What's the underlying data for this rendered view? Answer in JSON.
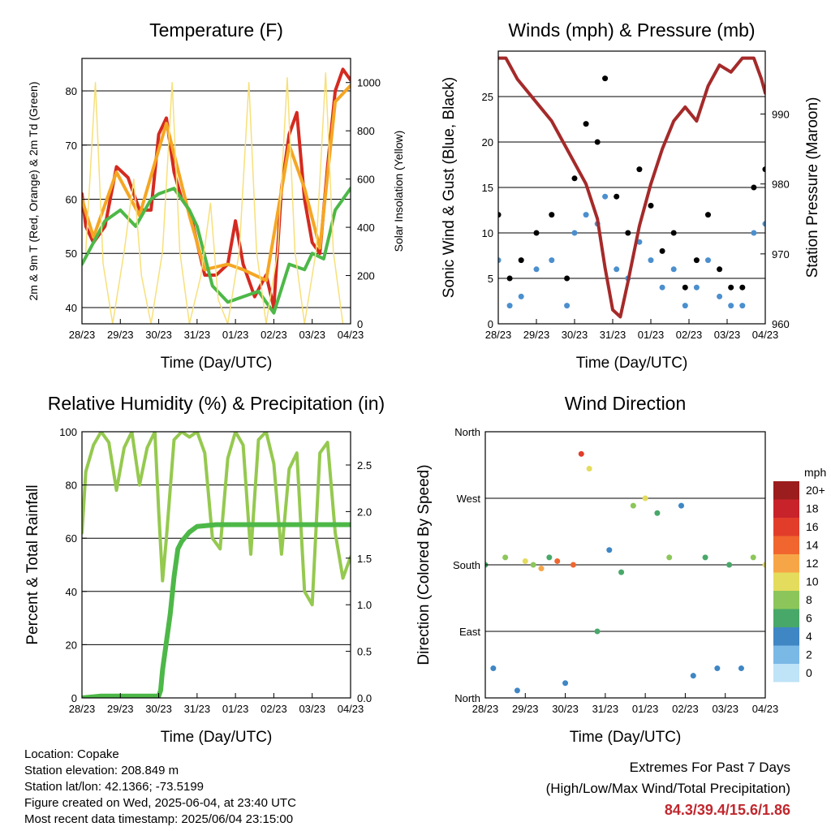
{
  "chart_data": [
    {
      "type": "line",
      "title": "Temperature (F)",
      "xlabel": "Time (Day/UTC)",
      "ylabel": "2m & 9m T (Red, Orange) & 2m Td (Green)",
      "ylabel_right": "Solar Insolation (Yellow)",
      "x_ticks": [
        "28/23",
        "29/23",
        "30/23",
        "31/23",
        "01/23",
        "02/23",
        "03/23",
        "04/23"
      ],
      "y_ticks": [
        40,
        50,
        60,
        70,
        80
      ],
      "y_right_ticks": [
        0,
        200,
        400,
        600,
        800,
        1000
      ],
      "ylim": [
        37,
        86
      ],
      "y_right_lim": [
        0,
        1100
      ],
      "grid": true,
      "series": [
        {
          "name": "2m T",
          "color": "#d42a20",
          "x": [
            0,
            0.1,
            0.3,
            0.6,
            0.9,
            1.2,
            1.5,
            1.8,
            2.0,
            2.2,
            2.4,
            2.6,
            2.8,
            3.0,
            3.2,
            3.5,
            3.8,
            4.0,
            4.2,
            4.5,
            4.8,
            5.0,
            5.2,
            5.4,
            5.6,
            5.8,
            6.0,
            6.2,
            6.4,
            6.6,
            6.8,
            7.0
          ],
          "y": [
            61,
            55,
            52,
            55,
            66,
            64,
            58,
            58,
            72,
            75,
            65,
            60,
            58,
            52,
            46,
            46,
            48,
            56,
            48,
            42,
            46,
            40,
            62,
            72,
            76,
            60,
            52,
            50,
            66,
            80,
            84,
            82
          ]
        },
        {
          "name": "9m T",
          "color": "#f5a623",
          "x": [
            0,
            0.3,
            0.9,
            1.5,
            2.2,
            2.8,
            3.2,
            3.8,
            4.2,
            4.8,
            5.4,
            5.8,
            6.2,
            6.6,
            7.0
          ],
          "y": [
            60,
            53,
            65,
            57,
            74,
            57,
            47,
            48,
            47,
            45,
            70,
            62,
            51,
            78,
            81
          ]
        },
        {
          "name": "2m Td",
          "color": "#4db848",
          "x": [
            0,
            0.3,
            0.6,
            1.0,
            1.4,
            1.8,
            2.0,
            2.4,
            2.8,
            3.0,
            3.4,
            3.8,
            4.2,
            4.6,
            5.0,
            5.4,
            5.8,
            6.0,
            6.3,
            6.6,
            7.0
          ],
          "y": [
            48,
            52,
            56,
            58,
            55,
            60,
            61,
            62,
            58,
            55,
            44,
            41,
            42,
            43,
            39,
            48,
            47,
            50,
            49,
            58,
            62
          ]
        },
        {
          "name": "Solar Insolation",
          "color": "#f7e07a",
          "axis": "right",
          "x": [
            0.1,
            0.35,
            0.55,
            0.8,
            1.1,
            1.35,
            1.55,
            1.8,
            2.1,
            2.35,
            2.55,
            2.8,
            3.1,
            3.35,
            3.55,
            3.8,
            4.1,
            4.35,
            4.55,
            4.8,
            5.1,
            5.35,
            5.55,
            5.8,
            6.1,
            6.35,
            6.55,
            6.8
          ],
          "y": [
            300,
            1000,
            250,
            0,
            300,
            600,
            200,
            0,
            300,
            1000,
            300,
            0,
            200,
            500,
            100,
            0,
            300,
            1000,
            300,
            0,
            300,
            1020,
            300,
            0,
            300,
            1040,
            300,
            0
          ]
        }
      ]
    },
    {
      "type": "scatter",
      "title": "Winds (mph) & Pressure (mb)",
      "xlabel": "Time (Day/UTC)",
      "ylabel": "Sonic Wind & Gust (Blue, Black)",
      "ylabel_right": "Station Pressure (Maroon)",
      "x_ticks": [
        "28/23",
        "29/23",
        "30/23",
        "31/23",
        "01/23",
        "02/23",
        "03/23",
        "04/23"
      ],
      "y_ticks": [
        0,
        5,
        10,
        15,
        20,
        25
      ],
      "y_right_ticks": [
        960,
        970,
        980,
        990
      ],
      "ylim": [
        0,
        30
      ],
      "y_right_lim": [
        960,
        999
      ],
      "grid": true,
      "series": [
        {
          "name": "Gust",
          "color": "#000000",
          "x": [
            0,
            0.3,
            0.6,
            1.0,
            1.4,
            1.8,
            2.0,
            2.3,
            2.6,
            2.8,
            3.1,
            3.4,
            3.7,
            4.0,
            4.3,
            4.6,
            4.9,
            5.2,
            5.5,
            5.8,
            6.1,
            6.4,
            6.7,
            7.0
          ],
          "y": [
            12,
            5,
            7,
            10,
            12,
            5,
            16,
            22,
            20,
            27,
            14,
            10,
            17,
            13,
            8,
            10,
            4,
            7,
            12,
            6,
            4,
            4,
            15,
            17
          ]
        },
        {
          "name": "Wind",
          "color": "#4b8fce",
          "x": [
            0,
            0.3,
            0.6,
            1.0,
            1.4,
            1.8,
            2.0,
            2.3,
            2.6,
            2.8,
            3.1,
            3.4,
            3.7,
            4.0,
            4.3,
            4.6,
            4.9,
            5.2,
            5.5,
            5.8,
            6.1,
            6.4,
            6.7,
            7.0
          ],
          "y": [
            7,
            2,
            3,
            6,
            7,
            2,
            10,
            12,
            11,
            14,
            6,
            5,
            9,
            7,
            4,
            6,
            2,
            4,
            7,
            3,
            2,
            2,
            10,
            11
          ]
        },
        {
          "name": "Station Pressure",
          "color": "#a52a2a",
          "axis": "right",
          "x": [
            0,
            0.2,
            0.5,
            0.8,
            1.1,
            1.4,
            1.7,
            2.0,
            2.3,
            2.6,
            2.8,
            3.0,
            3.2,
            3.4,
            3.7,
            4.0,
            4.3,
            4.6,
            4.9,
            5.2,
            5.5,
            5.8,
            6.1,
            6.4,
            6.7,
            6.9,
            7.0
          ],
          "y": [
            998,
            998,
            995,
            993,
            991,
            989,
            986,
            983,
            980,
            975,
            968,
            962,
            961,
            966,
            974,
            980,
            985,
            989,
            991,
            989,
            994,
            997,
            996,
            998,
            998,
            995,
            993
          ]
        }
      ]
    },
    {
      "type": "line",
      "title": "Relative Humidity (%) & Precipitation (in)",
      "xlabel": "Time (Day/UTC)",
      "ylabel": "Percent & Total Rainfall",
      "x_ticks": [
        "28/23",
        "29/23",
        "30/23",
        "31/23",
        "01/23",
        "02/23",
        "03/23",
        "04/23"
      ],
      "y_ticks": [
        0,
        20,
        40,
        60,
        80,
        100
      ],
      "y_right_ticks": [
        "0.0",
        "0.5",
        "1.0",
        "1.5",
        "2.0",
        "2.5"
      ],
      "ylim": [
        0,
        100
      ],
      "y_right_lim": [
        0,
        2.857
      ],
      "grid": true,
      "series": [
        {
          "name": "Relative Humidity",
          "color": "#95c94f",
          "x": [
            0,
            0.1,
            0.3,
            0.5,
            0.7,
            0.9,
            1.1,
            1.3,
            1.5,
            1.7,
            1.9,
            2.0,
            2.1,
            2.2,
            2.4,
            2.6,
            2.8,
            3.0,
            3.2,
            3.4,
            3.6,
            3.8,
            4.0,
            4.2,
            4.4,
            4.6,
            4.8,
            5.0,
            5.2,
            5.4,
            5.6,
            5.8,
            6.0,
            6.2,
            6.4,
            6.6,
            6.8,
            7.0
          ],
          "y": [
            62,
            85,
            95,
            100,
            96,
            78,
            94,
            100,
            80,
            94,
            100,
            70,
            44,
            60,
            97,
            100,
            98,
            100,
            92,
            60,
            56,
            90,
            100,
            95,
            54,
            97,
            100,
            88,
            54,
            86,
            92,
            40,
            35,
            92,
            96,
            62,
            45,
            53
          ]
        },
        {
          "name": "Precipitation",
          "color": "#4db848",
          "axis": "right",
          "x": [
            0,
            0.5,
            1.0,
            1.5,
            1.9,
            2.0,
            2.05,
            2.1,
            2.2,
            2.3,
            2.4,
            2.5,
            2.6,
            2.8,
            3.0,
            3.5,
            4.0,
            5.0,
            6.0,
            7.0
          ],
          "y": [
            0.0,
            0.02,
            0.02,
            0.02,
            0.02,
            0.02,
            0.08,
            0.3,
            0.6,
            0.9,
            1.3,
            1.6,
            1.68,
            1.78,
            1.84,
            1.86,
            1.86,
            1.86,
            1.86,
            1.86
          ]
        }
      ]
    },
    {
      "type": "scatter",
      "title": "Wind Direction",
      "xlabel": "Time (Day/UTC)",
      "ylabel": "Direction (Colored By Speed)",
      "x_ticks": [
        "28/23",
        "29/23",
        "30/23",
        "31/23",
        "01/23",
        "02/23",
        "03/23",
        "04/23"
      ],
      "y_ticks": [
        "North",
        "East",
        "South",
        "West",
        "North"
      ],
      "ylim": [
        0,
        360
      ],
      "grid": true,
      "legend": {
        "title": "mph",
        "labels": [
          "20+",
          "18",
          "16",
          "14",
          "12",
          "10",
          "8",
          "6",
          "4",
          "2",
          "0"
        ],
        "colors": [
          "#9b1d1d",
          "#c8232b",
          "#e23d2b",
          "#f0662e",
          "#f7a647",
          "#e4dc5c",
          "#8cc65a",
          "#48a869",
          "#3f86c4",
          "#7ab8e6",
          "#bfe3f7"
        ]
      },
      "series": [
        {
          "name": "Direction",
          "x": [
            0.0,
            0.2,
            0.5,
            0.8,
            1.0,
            1.2,
            1.4,
            1.6,
            1.8,
            2.0,
            2.2,
            2.4,
            2.6,
            2.8,
            3.1,
            3.4,
            3.7,
            4.0,
            4.3,
            4.6,
            4.9,
            5.2,
            5.5,
            5.8,
            6.1,
            6.4,
            6.7,
            7.0
          ],
          "y": [
            180,
            40,
            190,
            10,
            185,
            180,
            175,
            190,
            185,
            20,
            180,
            330,
            310,
            90,
            200,
            170,
            260,
            270,
            250,
            190,
            260,
            30,
            190,
            40,
            180,
            40,
            190,
            180
          ],
          "speed": [
            6,
            3,
            8,
            4,
            10,
            7,
            12,
            6,
            14,
            4,
            14,
            15,
            9,
            5,
            4,
            5,
            8,
            9,
            6,
            7,
            3,
            3,
            6,
            3,
            5,
            3,
            8,
            10
          ]
        }
      ]
    }
  ],
  "info": {
    "location": "Location: Copake",
    "elevation": "Station elevation: 208.849 m",
    "latlon": "Station lat/lon: 42.1366; -73.5199",
    "created": "Figure created on Wed, 2025-06-04, at 23:40 UTC",
    "timestamp": "Most recent data timestamp: 2025/06/04 23:15:00"
  },
  "extremes": {
    "title": "Extremes For Past 7 Days",
    "subtitle": "(High/Low/Max Wind/Total Precipitation)",
    "values": "84.3/39.4/15.6/1.86",
    "value_color": "#c0272d"
  }
}
